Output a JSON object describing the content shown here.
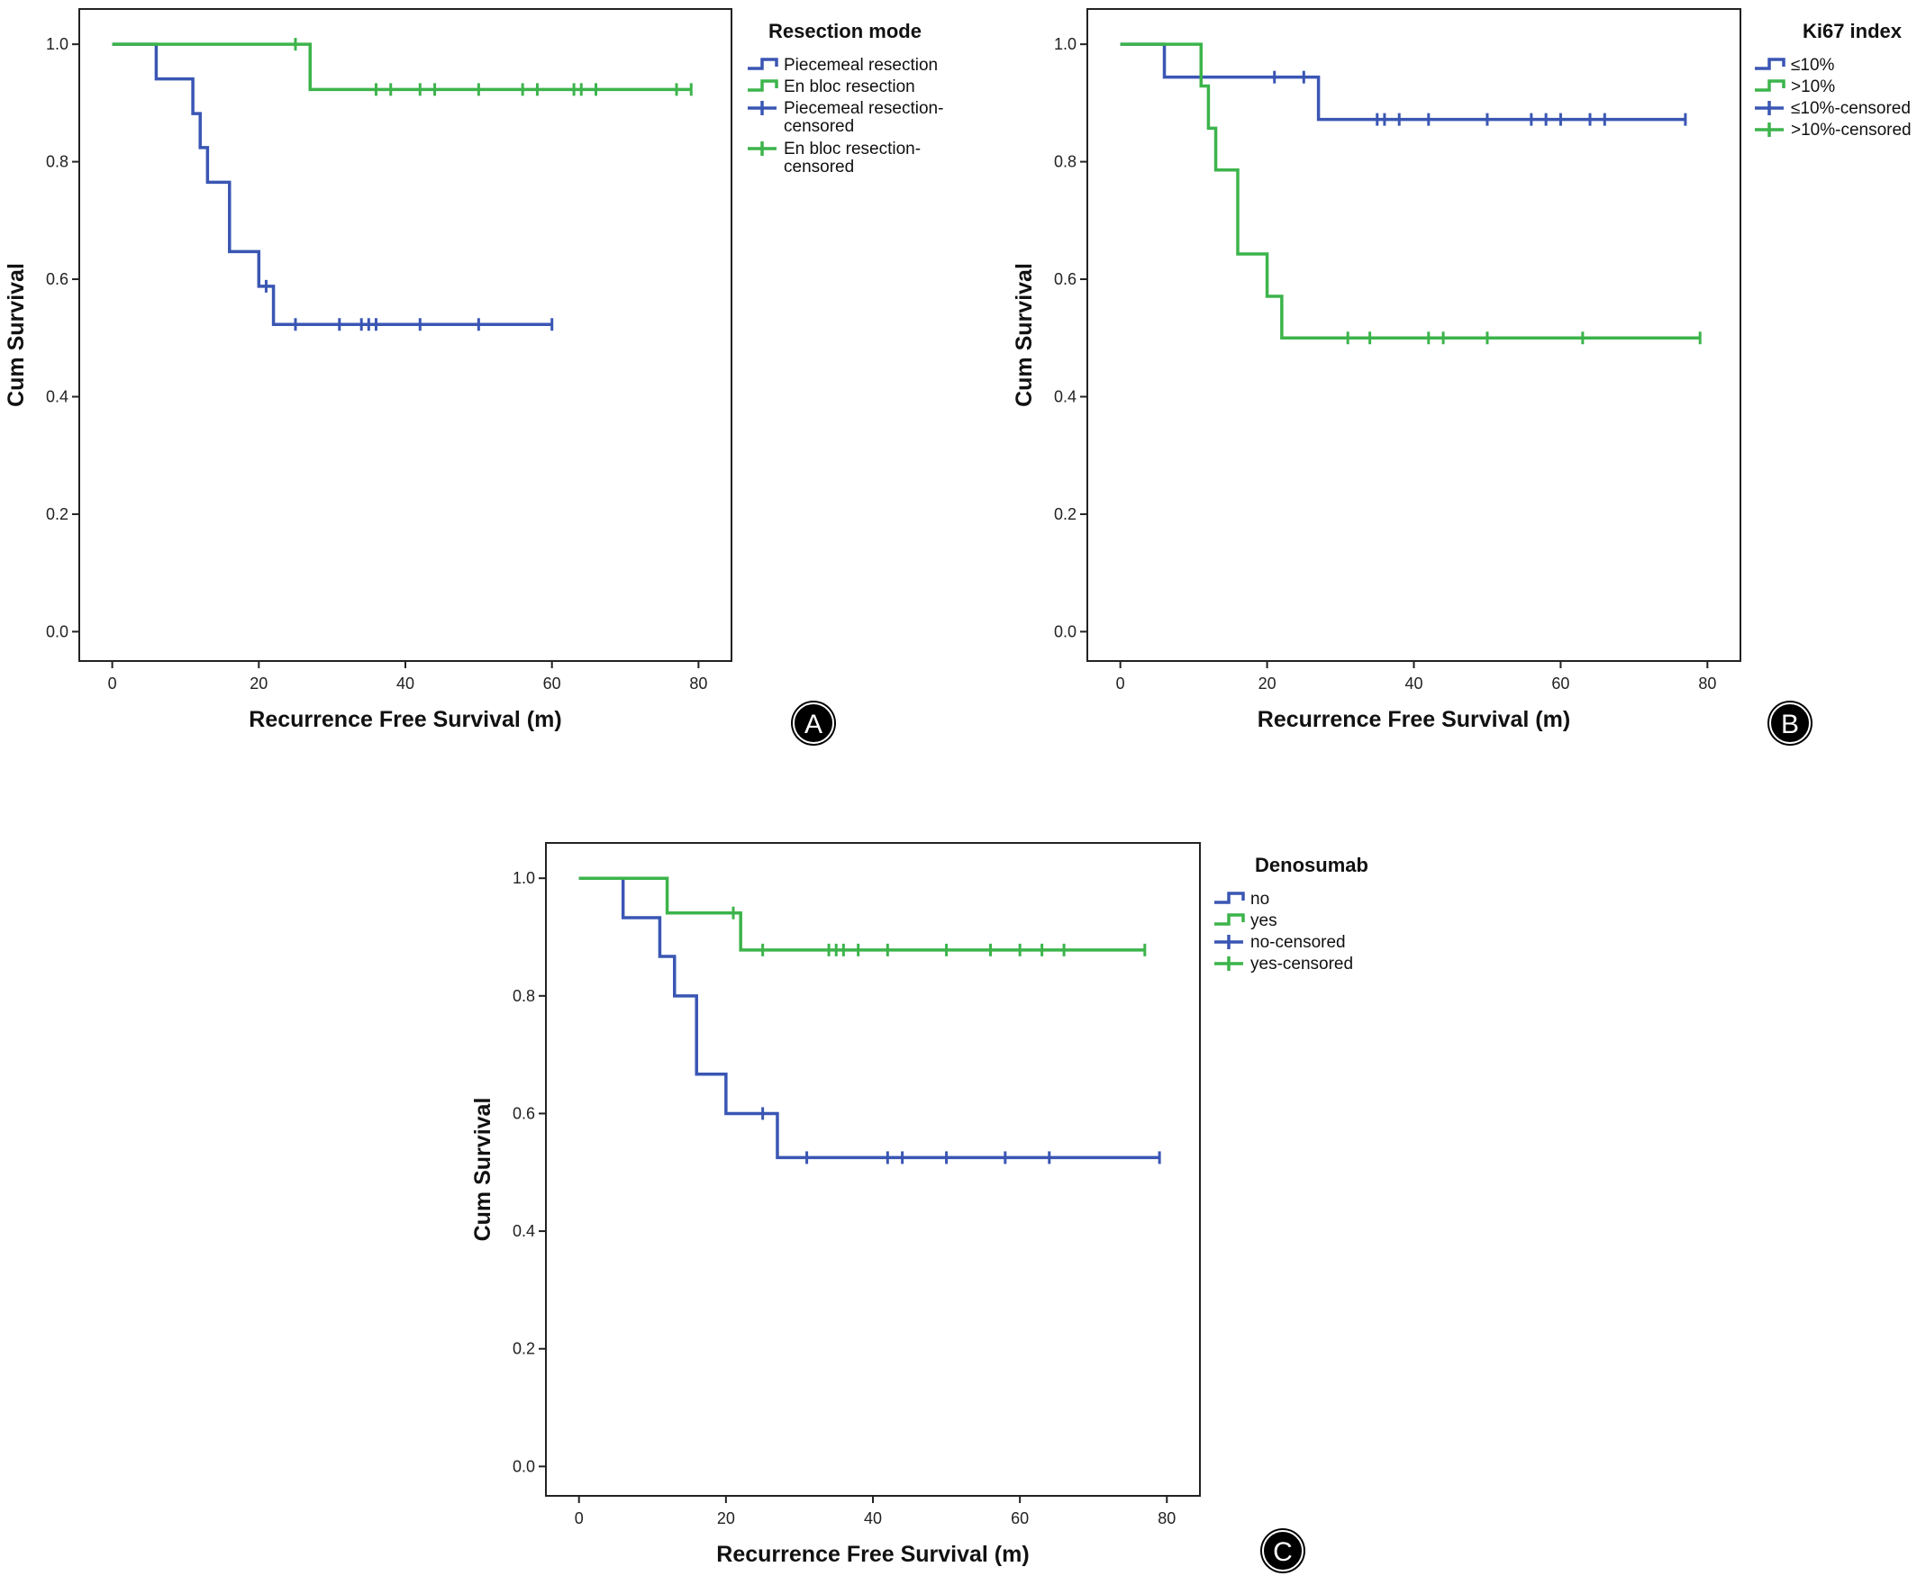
{
  "colors": {
    "blue": "#3a56b4",
    "green": "#3cb44b",
    "frame": "#222222"
  },
  "chart_data": [
    {
      "type": "line",
      "panel_label": "A",
      "legend_title": "Resection mode",
      "xlabel": "Recurrence Free Survival (m)",
      "ylabel": "Cum Survival",
      "xlim": [
        -4.5,
        84.5
      ],
      "ylim": [
        -0.05,
        1.06
      ],
      "x_ticks": [
        "0",
        "20",
        "40",
        "60",
        "80"
      ],
      "y_ticks": [
        "0.0",
        "0.2",
        "0.4",
        "0.6",
        "0.8",
        "1.0"
      ],
      "legend": [
        {
          "label": "Piecemeal resection",
          "color": "blue",
          "kind": "step"
        },
        {
          "label": "En bloc resection",
          "color": "green",
          "kind": "step"
        },
        {
          "label": "Piecemeal resection-censored",
          "color": "blue",
          "kind": "censor"
        },
        {
          "label": "En bloc resection-censored",
          "color": "green",
          "kind": "censor"
        }
      ],
      "series": [
        {
          "name": "Piecemeal resection",
          "color": "blue",
          "end": 60,
          "steps": [
            [
              0,
              1.0
            ],
            [
              6,
              0.941
            ],
            [
              11,
              0.882
            ],
            [
              12,
              0.824
            ],
            [
              13,
              0.765
            ],
            [
              16,
              0.647
            ],
            [
              20,
              0.588
            ],
            [
              22,
              0.523
            ]
          ],
          "censored": [
            [
              21,
              0.588
            ],
            [
              25,
              0.523
            ],
            [
              31,
              0.523
            ],
            [
              34,
              0.523
            ],
            [
              35,
              0.523
            ],
            [
              36,
              0.523
            ],
            [
              42,
              0.523
            ],
            [
              50,
              0.523
            ],
            [
              60,
              0.523
            ]
          ]
        },
        {
          "name": "En bloc resection",
          "color": "green",
          "end": 79,
          "steps": [
            [
              0,
              1.0
            ],
            [
              27,
              0.923
            ]
          ],
          "censored": [
            [
              25,
              1.0
            ],
            [
              36,
              0.923
            ],
            [
              38,
              0.923
            ],
            [
              42,
              0.923
            ],
            [
              44,
              0.923
            ],
            [
              50,
              0.923
            ],
            [
              56,
              0.923
            ],
            [
              58,
              0.923
            ],
            [
              63,
              0.923
            ],
            [
              64,
              0.923
            ],
            [
              66,
              0.923
            ],
            [
              77,
              0.923
            ],
            [
              79,
              0.923
            ]
          ]
        }
      ]
    },
    {
      "type": "line",
      "panel_label": "B",
      "legend_title": "Ki67 index",
      "xlabel": "Recurrence Free Survival (m)",
      "ylabel": "Cum Survival",
      "xlim": [
        -4.5,
        84.5
      ],
      "ylim": [
        -0.05,
        1.06
      ],
      "x_ticks": [
        "0",
        "20",
        "40",
        "60",
        "80"
      ],
      "y_ticks": [
        "0.0",
        "0.2",
        "0.4",
        "0.6",
        "0.8",
        "1.0"
      ],
      "legend": [
        {
          "label": "≤10%",
          "color": "blue",
          "kind": "step"
        },
        {
          "label": ">10%",
          "color": "green",
          "kind": "step"
        },
        {
          "label": "≤10%-censored",
          "color": "blue",
          "kind": "censor"
        },
        {
          "label": ">10%-censored",
          "color": "green",
          "kind": "censor"
        }
      ],
      "series": [
        {
          "name": "≤10%",
          "color": "blue",
          "end": 77,
          "steps": [
            [
              0,
              1.0
            ],
            [
              6,
              0.944
            ],
            [
              27,
              0.872
            ]
          ],
          "censored": [
            [
              21,
              0.944
            ],
            [
              25,
              0.944
            ],
            [
              35,
              0.872
            ],
            [
              36,
              0.872
            ],
            [
              38,
              0.872
            ],
            [
              42,
              0.872
            ],
            [
              50,
              0.872
            ],
            [
              56,
              0.872
            ],
            [
              58,
              0.872
            ],
            [
              60,
              0.872
            ],
            [
              64,
              0.872
            ],
            [
              66,
              0.872
            ],
            [
              77,
              0.872
            ]
          ]
        },
        {
          "name": ">10%",
          "color": "green",
          "end": 79,
          "steps": [
            [
              0,
              1.0
            ],
            [
              11,
              0.929
            ],
            [
              12,
              0.857
            ],
            [
              13,
              0.786
            ],
            [
              16,
              0.643
            ],
            [
              20,
              0.571
            ],
            [
              22,
              0.5
            ]
          ],
          "censored": [
            [
              31,
              0.5
            ],
            [
              34,
              0.5
            ],
            [
              42,
              0.5
            ],
            [
              44,
              0.5
            ],
            [
              50,
              0.5
            ],
            [
              63,
              0.5
            ],
            [
              79,
              0.5
            ]
          ]
        }
      ]
    },
    {
      "type": "line",
      "panel_label": "C",
      "legend_title": "Denosumab",
      "xlabel": "Recurrence Free Survival (m)",
      "ylabel": "Cum Survival",
      "xlim": [
        -4.5,
        84.5
      ],
      "ylim": [
        -0.05,
        1.06
      ],
      "x_ticks": [
        "0",
        "20",
        "40",
        "60",
        "80"
      ],
      "y_ticks": [
        "0.0",
        "0.2",
        "0.4",
        "0.6",
        "0.8",
        "1.0"
      ],
      "legend": [
        {
          "label": "no",
          "color": "blue",
          "kind": "step"
        },
        {
          "label": "yes",
          "color": "green",
          "kind": "step"
        },
        {
          "label": "no-censored",
          "color": "blue",
          "kind": "censor"
        },
        {
          "label": "yes-censored",
          "color": "green",
          "kind": "censor"
        }
      ],
      "series": [
        {
          "name": "no",
          "color": "blue",
          "end": 79,
          "steps": [
            [
              0,
              1.0
            ],
            [
              6,
              0.933
            ],
            [
              11,
              0.867
            ],
            [
              13,
              0.8
            ],
            [
              16,
              0.667
            ],
            [
              20,
              0.6
            ],
            [
              27,
              0.525
            ]
          ],
          "censored": [
            [
              25,
              0.6
            ],
            [
              31,
              0.525
            ],
            [
              42,
              0.525
            ],
            [
              44,
              0.525
            ],
            [
              50,
              0.525
            ],
            [
              58,
              0.525
            ],
            [
              64,
              0.525
            ],
            [
              79,
              0.525
            ]
          ]
        },
        {
          "name": "yes",
          "color": "green",
          "end": 77,
          "steps": [
            [
              0,
              1.0
            ],
            [
              12,
              0.941
            ],
            [
              22,
              0.878
            ]
          ],
          "censored": [
            [
              21,
              0.941
            ],
            [
              25,
              0.878
            ],
            [
              34,
              0.878
            ],
            [
              35,
              0.878
            ],
            [
              36,
              0.878
            ],
            [
              38,
              0.878
            ],
            [
              42,
              0.878
            ],
            [
              50,
              0.878
            ],
            [
              56,
              0.878
            ],
            [
              60,
              0.878
            ],
            [
              63,
              0.878
            ],
            [
              66,
              0.878
            ],
            [
              77,
              0.878
            ]
          ]
        }
      ]
    }
  ]
}
